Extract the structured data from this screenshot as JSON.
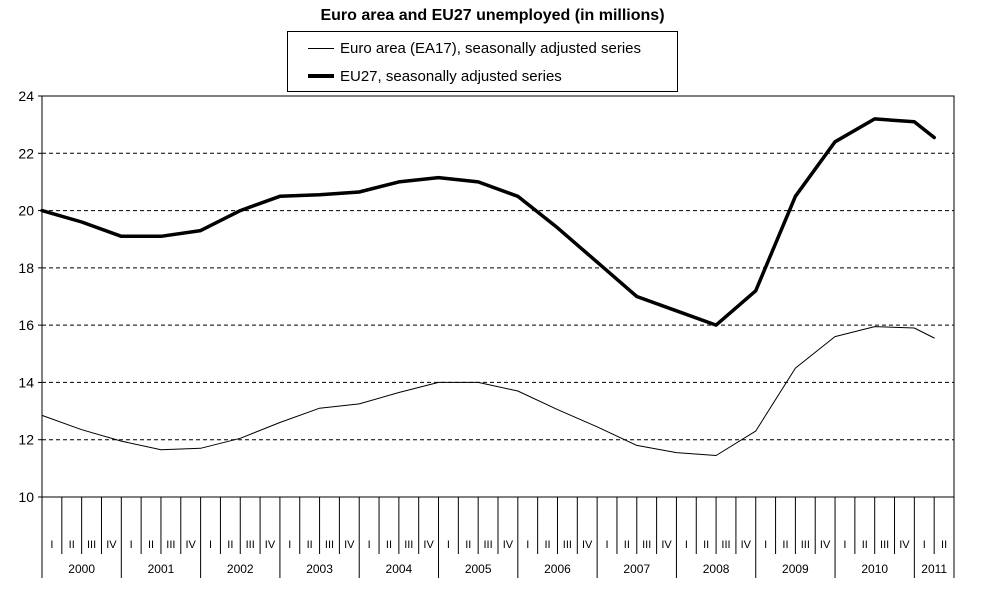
{
  "chart_data": {
    "type": "line",
    "title": "Euro area and EU27 unemployed (in millions)",
    "xlabel": "",
    "ylabel": "",
    "ylim": [
      10,
      24
    ],
    "yticks": [
      10,
      12,
      14,
      16,
      18,
      20,
      22,
      24
    ],
    "grid": "horizontal dashed",
    "legend_position": "top-center",
    "quarter_labels": [
      "I",
      "II",
      "III",
      "IV"
    ],
    "years": [
      "2000",
      "2001",
      "2002",
      "2003",
      "2004",
      "2005",
      "2006",
      "2007",
      "2008",
      "2009",
      "2010",
      "2011"
    ],
    "last_year_quarters": [
      "I",
      "II"
    ],
    "x": [
      "2000-01",
      "2000-07",
      "2001-01",
      "2001-07",
      "2002-01",
      "2002-07",
      "2003-01",
      "2003-07",
      "2004-01",
      "2004-07",
      "2005-01",
      "2005-07",
      "2006-01",
      "2006-07",
      "2007-01",
      "2007-07",
      "2008-01",
      "2008-07",
      "2009-01",
      "2009-07",
      "2010-01",
      "2010-07",
      "2011-01",
      "2011-04"
    ],
    "series": [
      {
        "name": "Euro area (EA17), seasonally adjusted series",
        "style": "thin",
        "values": [
          12.85,
          12.35,
          11.95,
          11.65,
          11.7,
          12.05,
          12.6,
          13.1,
          13.25,
          13.65,
          14.0,
          14.0,
          13.7,
          13.05,
          12.45,
          11.8,
          11.55,
          11.45,
          12.3,
          14.5,
          15.6,
          15.95,
          15.9,
          15.55
        ]
      },
      {
        "name": "EU27, seasonally adjusted series",
        "style": "thick",
        "values": [
          20.0,
          19.6,
          19.1,
          19.1,
          19.3,
          20.0,
          20.5,
          20.55,
          20.65,
          21.0,
          21.15,
          21.0,
          20.5,
          19.4,
          18.2,
          17.0,
          16.5,
          16.0,
          17.2,
          20.5,
          22.4,
          23.2,
          23.1,
          22.55
        ]
      }
    ]
  }
}
